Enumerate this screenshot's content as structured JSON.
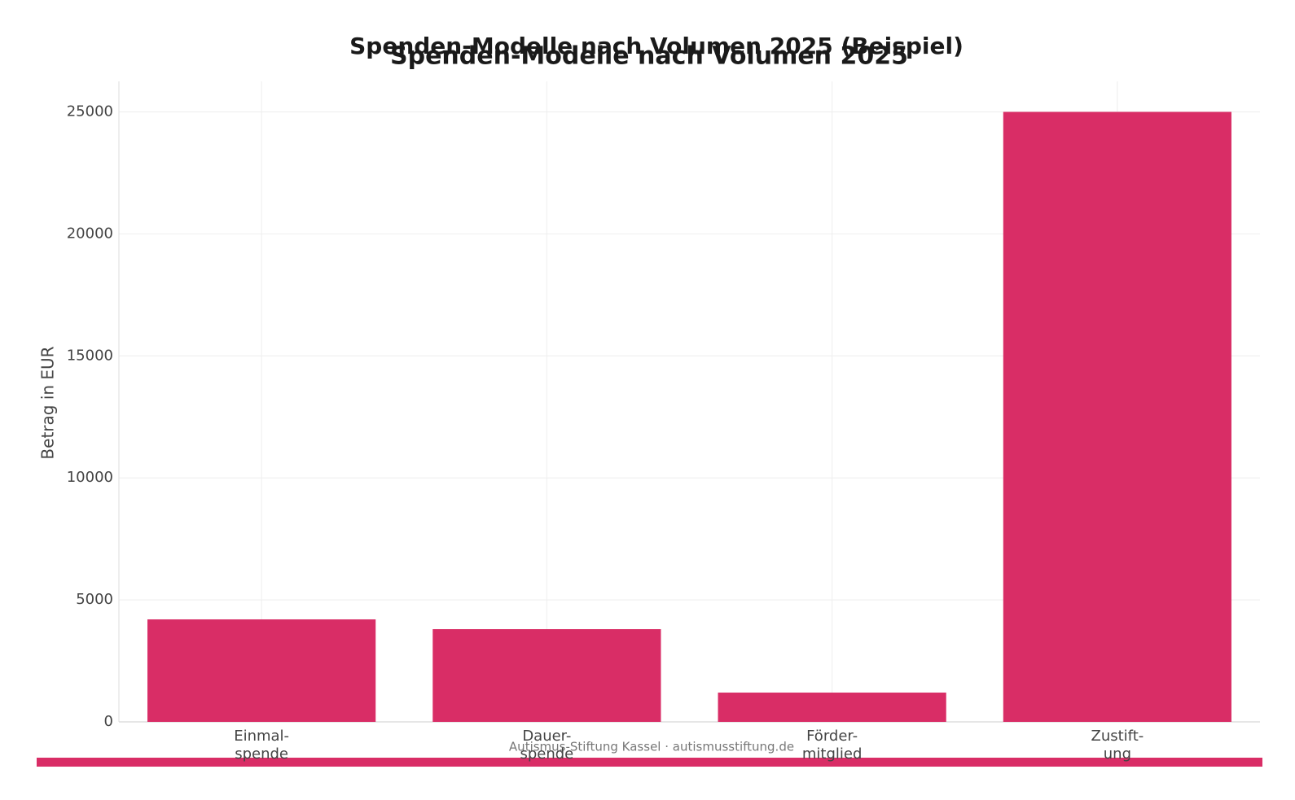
{
  "chart_data": {
    "type": "bar",
    "title": "Spenden-Modelle nach Volumen 2025 (Beispiel)",
    "subtitle": "Spenden-Modelle nach Volumen 2025",
    "y_label": "Betrag in EUR",
    "footer": "Autismus-Stiftung Kassel · autismusstiftung.de",
    "categories": [
      "Einmal-\nspende",
      "Dauer-\nspende",
      "Förder-\nmitglied",
      "Zustift-\nung"
    ],
    "values": [
      4200,
      3800,
      1200,
      25000
    ],
    "color": "#d92d66",
    "ylim": [
      0,
      26250
    ],
    "yticks": [
      0,
      5000,
      10000,
      15000,
      20000,
      25000
    ],
    "grid": true
  }
}
